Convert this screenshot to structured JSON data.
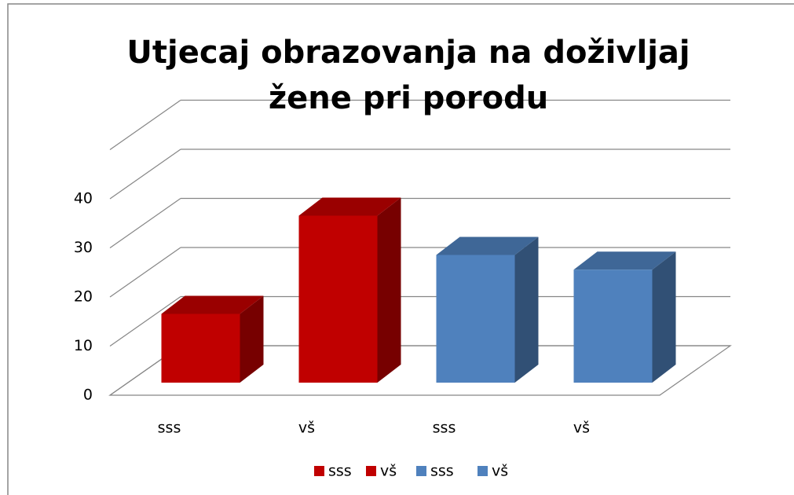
{
  "chart_data": {
    "type": "bar3d",
    "title": "Utjecaj obrazovanja na doživljaj žene pri porodu",
    "categories": [
      "sss",
      "vš",
      "sss",
      "vš"
    ],
    "values": [
      14,
      34,
      26,
      23
    ],
    "colors": [
      "#c00000",
      "#c00000",
      "#4f81bd",
      "#4f81bd"
    ],
    "ylim": [
      0,
      50
    ],
    "yticks": [
      0,
      10,
      20,
      30,
      40
    ],
    "grid": true,
    "legend": "bottom"
  }
}
